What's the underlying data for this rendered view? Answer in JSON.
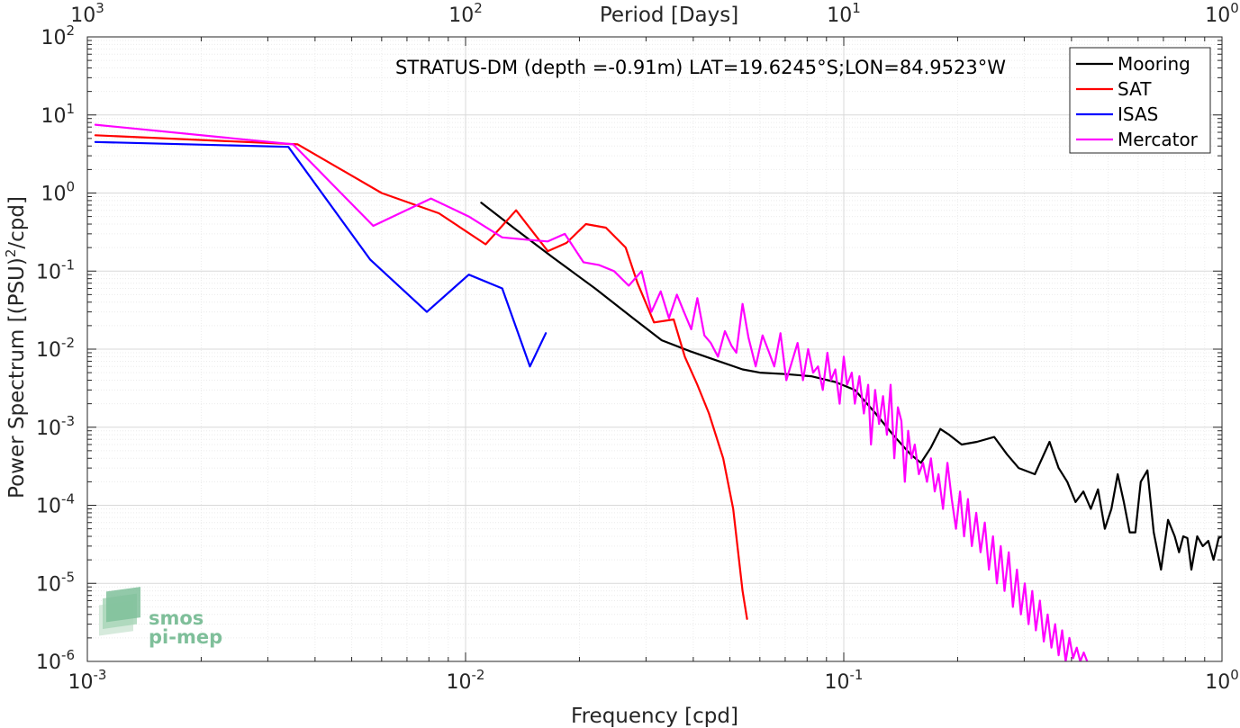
{
  "chart_data": {
    "type": "line",
    "title": "STRATUS-DM (depth =-0.91m) LAT=19.6245°S;LON=84.9523°W",
    "xlabel": "Frequency [cpd]",
    "ylabel": "Power Spectrum [(PSU)",
    "ylabel_sup": "2",
    "ylabel_tail": "/cpd]",
    "top_xlabel": "Period [Days]",
    "x_scale": "log",
    "y_scale": "log",
    "xlim": [
      0.001,
      1
    ],
    "ylim": [
      1e-06,
      100
    ],
    "grid": true,
    "minor_grid": true,
    "legend_position": "top-right",
    "x_ticks": [
      {
        "value": 0.001,
        "base": "10",
        "exp": "-3"
      },
      {
        "value": 0.01,
        "base": "10",
        "exp": "-2"
      },
      {
        "value": 0.1,
        "base": "10",
        "exp": "-1"
      },
      {
        "value": 1,
        "base": "10",
        "exp": "0"
      }
    ],
    "top_ticks": [
      {
        "freq": 0.001,
        "base": "10",
        "exp": "3"
      },
      {
        "freq": 0.01,
        "base": "10",
        "exp": "2"
      },
      {
        "freq": 0.1,
        "base": "10",
        "exp": "1"
      },
      {
        "freq": 1,
        "base": "10",
        "exp": "0"
      }
    ],
    "y_ticks": [
      {
        "value": 1e-06,
        "base": "10",
        "exp": "-6"
      },
      {
        "value": 1e-05,
        "base": "10",
        "exp": "-5"
      },
      {
        "value": 0.0001,
        "base": "10",
        "exp": "-4"
      },
      {
        "value": 0.001,
        "base": "10",
        "exp": "-3"
      },
      {
        "value": 0.01,
        "base": "10",
        "exp": "-2"
      },
      {
        "value": 0.1,
        "base": "10",
        "exp": "-1"
      },
      {
        "value": 1,
        "base": "10",
        "exp": "0"
      },
      {
        "value": 10,
        "base": "10",
        "exp": "1"
      },
      {
        "value": 100,
        "base": "10",
        "exp": "2"
      }
    ],
    "series": [
      {
        "name": "Mooring",
        "color": "#000000",
        "x": [
          0.011,
          0.0135,
          0.017,
          0.022,
          0.028,
          0.033,
          0.039,
          0.046,
          0.054,
          0.06,
          0.07,
          0.082,
          0.095,
          0.107,
          0.12,
          0.135,
          0.15,
          0.16,
          0.17,
          0.18,
          0.19,
          0.205,
          0.225,
          0.25,
          0.27,
          0.29,
          0.32,
          0.35,
          0.37,
          0.39,
          0.41,
          0.43,
          0.45,
          0.47,
          0.49,
          0.51,
          0.53,
          0.55,
          0.57,
          0.59,
          0.61,
          0.635,
          0.66,
          0.69,
          0.72,
          0.75,
          0.77,
          0.79,
          0.81,
          0.83,
          0.86,
          0.89,
          0.92,
          0.95,
          0.98,
          1.0
        ],
        "y": [
          0.75,
          0.35,
          0.15,
          0.06,
          0.024,
          0.013,
          0.0095,
          0.0072,
          0.0055,
          0.005,
          0.0048,
          0.0045,
          0.0038,
          0.003,
          0.0016,
          0.0008,
          0.00045,
          0.00035,
          0.00055,
          0.00095,
          0.0008,
          0.0006,
          0.00065,
          0.00075,
          0.00045,
          0.0003,
          0.00025,
          0.00065,
          0.0003,
          0.0002,
          0.00011,
          0.00015,
          9e-05,
          0.00016,
          5e-05,
          9e-05,
          0.00025,
          0.00011,
          4.5e-05,
          4.5e-05,
          0.0002,
          0.00028,
          4.5e-05,
          1.5e-05,
          6.5e-05,
          4e-05,
          2.5e-05,
          4e-05,
          3.8e-05,
          1.5e-05,
          4e-05,
          3e-05,
          3.5e-05,
          2e-05,
          3.8e-05,
          4e-05
        ]
      },
      {
        "name": "SAT",
        "color": "#ff0000",
        "x": [
          0.00105,
          0.0036,
          0.006,
          0.0085,
          0.0113,
          0.0136,
          0.0165,
          0.0185,
          0.0208,
          0.0235,
          0.0265,
          0.0285,
          0.0315,
          0.0355,
          0.038,
          0.041,
          0.044,
          0.048,
          0.051,
          0.054,
          0.0555
        ],
        "y": [
          5.5,
          4.2,
          1.0,
          0.55,
          0.22,
          0.6,
          0.18,
          0.23,
          0.4,
          0.36,
          0.2,
          0.07,
          0.022,
          0.024,
          0.008,
          0.0035,
          0.0015,
          0.0004,
          9e-05,
          8e-06,
          3.5e-06
        ]
      },
      {
        "name": "ISAS",
        "color": "#0000ff",
        "x": [
          0.00105,
          0.0034,
          0.0056,
          0.0079,
          0.0102,
          0.0125,
          0.0148,
          0.0163
        ],
        "y": [
          4.5,
          3.9,
          0.14,
          0.03,
          0.09,
          0.06,
          0.006,
          0.016
        ]
      },
      {
        "name": "Mercator",
        "color": "#ff00ff",
        "x": [
          0.00105,
          0.0035,
          0.0057,
          0.0081,
          0.0102,
          0.0125,
          0.0148,
          0.0165,
          0.0183,
          0.0205,
          0.0225,
          0.0247,
          0.027,
          0.0292,
          0.031,
          0.0328,
          0.0345,
          0.0362,
          0.0378,
          0.0395,
          0.041,
          0.0428,
          0.0445,
          0.0465,
          0.0485,
          0.0505,
          0.052,
          0.054,
          0.056,
          0.0585,
          0.061,
          0.0635,
          0.0655,
          0.068,
          0.0705,
          0.073,
          0.0755,
          0.078,
          0.0805,
          0.083,
          0.0855,
          0.088,
          0.0905,
          0.0925,
          0.095,
          0.0975,
          0.1,
          0.102,
          0.105,
          0.107,
          0.11,
          0.113,
          0.116,
          0.118,
          0.121,
          0.124,
          0.127,
          0.13,
          0.133,
          0.136,
          0.139,
          0.142,
          0.145,
          0.148,
          0.151,
          0.154,
          0.158,
          0.162,
          0.166,
          0.17,
          0.174,
          0.178,
          0.183,
          0.188,
          0.193,
          0.198,
          0.203,
          0.208,
          0.213,
          0.218,
          0.224,
          0.23,
          0.236,
          0.242,
          0.248,
          0.254,
          0.26,
          0.266,
          0.273,
          0.28,
          0.287,
          0.294,
          0.301,
          0.308,
          0.315,
          0.322,
          0.33,
          0.338,
          0.346,
          0.354,
          0.362,
          0.37,
          0.378,
          0.386,
          0.395,
          0.404,
          0.413,
          0.422,
          0.431,
          0.44
        ],
        "y": [
          7.5,
          4.2,
          0.38,
          0.85,
          0.5,
          0.27,
          0.25,
          0.24,
          0.3,
          0.13,
          0.12,
          0.1,
          0.065,
          0.1,
          0.03,
          0.055,
          0.025,
          0.05,
          0.03,
          0.018,
          0.045,
          0.015,
          0.012,
          0.008,
          0.017,
          0.011,
          0.009,
          0.038,
          0.014,
          0.006,
          0.015,
          0.009,
          0.006,
          0.016,
          0.004,
          0.007,
          0.012,
          0.004,
          0.01,
          0.005,
          0.006,
          0.003,
          0.009,
          0.004,
          0.0055,
          0.002,
          0.008,
          0.0035,
          0.005,
          0.002,
          0.0045,
          0.0015,
          0.0035,
          0.0006,
          0.003,
          0.0011,
          0.0025,
          0.0008,
          0.0035,
          0.0004,
          0.0018,
          0.0012,
          0.0002,
          0.0009,
          0.0004,
          0.0006,
          0.00025,
          0.00035,
          0.0002,
          0.0004,
          0.00015,
          0.00025,
          9e-05,
          0.00035,
          0.00012,
          5e-05,
          0.00015,
          4e-05,
          0.00012,
          3e-05,
          8e-05,
          2.5e-05,
          6e-05,
          1.5e-05,
          4e-05,
          1e-05,
          3e-05,
          8e-06,
          2.5e-05,
          5e-06,
          1.5e-05,
          4e-06,
          1e-05,
          3e-06,
          8e-06,
          2.5e-06,
          6e-06,
          1.8e-06,
          4e-06,
          1.5e-06,
          3e-06,
          1.2e-06,
          2.5e-06,
          1e-06,
          2e-06,
          1.1e-06,
          1.5e-06,
          1e-06,
          1.3e-06,
          1e-06
        ]
      }
    ]
  },
  "logo": {
    "line1": "smos",
    "line2": "pi-mep"
  }
}
